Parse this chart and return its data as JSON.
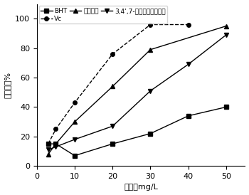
{
  "BHT_x": [
    3,
    5,
    10,
    20,
    30,
    40,
    50
  ],
  "BHT_y": [
    15,
    15,
    7,
    15,
    22,
    34,
    40
  ],
  "Vc_x": [
    3,
    5,
    10,
    20,
    30,
    40
  ],
  "Vc_y": [
    15,
    25,
    43,
    76,
    96,
    96
  ],
  "huang_x": [
    3,
    5,
    10,
    20,
    30,
    50
  ],
  "huang_y": [
    8,
    15,
    30,
    54,
    79,
    95
  ],
  "tri_x": [
    3,
    5,
    10,
    20,
    30,
    40,
    50
  ],
  "tri_y": [
    11,
    13,
    18,
    27,
    51,
    69,
    89
  ],
  "legend1": "BHT",
  "legend2": "Vc",
  "legend3": "黄颜木素",
  "legend4": "3,4’,7-三羟基二氮黄酮醇",
  "xlabel": "浓度，mg/L",
  "ylabel": "消除率，%",
  "xlim": [
    0,
    55
  ],
  "ylim": [
    0,
    110
  ],
  "xticks": [
    0,
    10,
    20,
    30,
    40,
    50
  ],
  "yticks": [
    0,
    20,
    40,
    60,
    80,
    100
  ]
}
